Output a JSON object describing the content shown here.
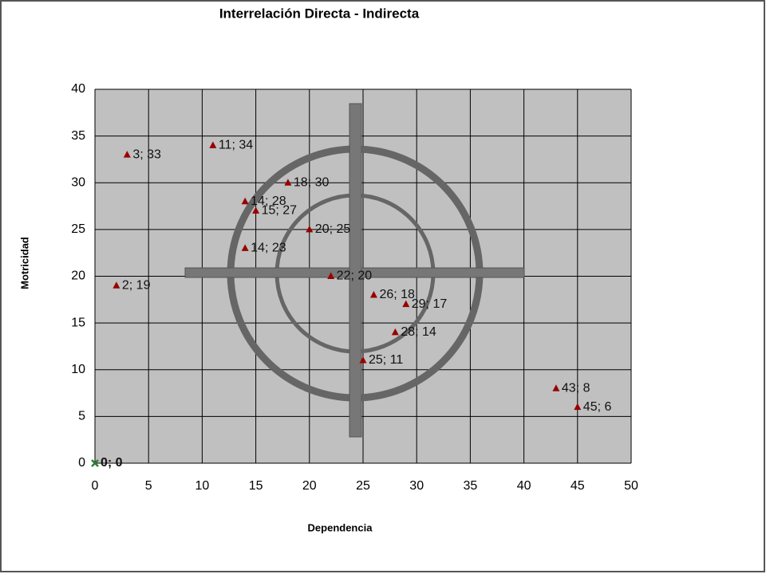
{
  "chart_data": {
    "type": "scatter",
    "title": "Interrelación  Directa - Indirecta",
    "x_label": "Dependencia",
    "y_label": "Motricidad",
    "xlim": [
      0,
      50
    ],
    "xticks": [
      0,
      5,
      10,
      15,
      20,
      25,
      30,
      35,
      40,
      45,
      50
    ],
    "ylim": [
      0,
      40
    ],
    "yticks": [
      0,
      5,
      10,
      15,
      20,
      25,
      30,
      35,
      40
    ],
    "grid": true,
    "series": [
      {
        "color": "#990000",
        "marker": "triangle",
        "x": [
          3,
          11,
          18,
          14,
          15,
          20,
          14,
          2,
          22,
          26,
          29,
          28,
          25,
          43,
          45
        ],
        "y": [
          33,
          34,
          30,
          28,
          27,
          25,
          23,
          19,
          20,
          18,
          17,
          14,
          11,
          8,
          6
        ],
        "value_labels": [
          "3; 33",
          "11; 34",
          "18; 30",
          "14; 28",
          "15; 27",
          "20; 25",
          "14; 23",
          "2; 19",
          "22; 20",
          "26; 18",
          "29; 17",
          "28; 14",
          "25; 11",
          "43; 8",
          "45; 6"
        ]
      },
      {
        "color": "#2e7d32",
        "marker": "x",
        "x": [
          0
        ],
        "y": [
          0
        ],
        "value_labels": [
          "0; 0"
        ]
      }
    ]
  }
}
